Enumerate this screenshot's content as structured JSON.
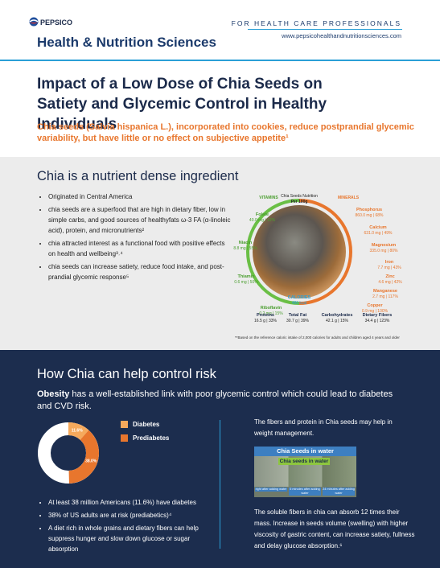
{
  "header": {
    "logo": "PEPSICO",
    "brand": "Health & Nutrition Sciences",
    "audience": "FOR HEALTH CARE PROFESSIONALS",
    "url": "www.pepsicohealthandnutritionsciences.com"
  },
  "hero": {
    "title": "Impact of a Low Dose of Chia Seeds on Satiety and Glycemic Control in Healthy Individuals",
    "subtitle": "Chia seeds (Salvia hispanica L.), incorporated into cookies, reduce postprandial glycemic variability, but have little or no effect on subjective appetite¹"
  },
  "nutrient": {
    "heading": "Chia is a nutrient dense ingredient",
    "bullets": [
      "Originated in Central America",
      "chia seeds are a superfood that are high in dietary fiber, low in simple carbs, and good sources of healthyfats ω-3 FA (α-linoleic acid), protein, and micronutrients²",
      "chia attracted interest as a functional food with positive effects on health and wellbeing³˒⁴",
      "chia seeds can increase satiety, reduce food intake, and post-prandial glycemic response⁵"
    ]
  },
  "infographic": {
    "vitamins_label": "VITAMINS",
    "minerals_label": "MINERALS",
    "title": "Chia Seeds Nutrition",
    "per": "Per 100g",
    "vitamins": [
      {
        "name": "Folate",
        "amount": "40.0 mg | 12%"
      },
      {
        "name": "Niacin",
        "amount": "8.8 mg | 55%"
      },
      {
        "name": "Thiamin",
        "amount": "0.6 mg | 50%"
      },
      {
        "name": "Riboflavin",
        "amount": "0.2 mg | 15%"
      }
    ],
    "minerals": [
      {
        "name": "Phosphorus",
        "amount": "860.0 mg | 68%"
      },
      {
        "name": "Calcium",
        "amount": "631.0 mg | 49%"
      },
      {
        "name": "Magnesium",
        "amount": "335.0 mg | 80%"
      },
      {
        "name": "Iron",
        "amount": "7.7 mg | 43%"
      },
      {
        "name": "Zinc",
        "amount": "4.6 mg | 42%"
      },
      {
        "name": "Manganese",
        "amount": "2.7 mg | 117%"
      },
      {
        "name": "Copper",
        "amount": "0.9 mg | 100%"
      }
    ],
    "calories": {
      "label": "CALORIES",
      "amount": "486 kcal"
    },
    "macros": [
      {
        "name": "Proteins",
        "amount": "16.5 g | 33%"
      },
      {
        "name": "Total Fat",
        "amount": "30.7 g | 39%"
      },
      {
        "name": "Carbohydrates",
        "amount": "42.1 g | 15%"
      },
      {
        "name": "Dietary Fibers",
        "amount": "34.4 g | 123%"
      }
    ],
    "footnote": "**Based on the reference caloric intake of 2,000 calories for adults and children aged 4 years and older"
  },
  "risk": {
    "heading": "How Chia can help control risk",
    "lead_term": "Obesity",
    "lead": "has a well-established link with poor glycemic control which could lead to diabetes and CVD risk.",
    "bullets": [
      "At least 38 million Americans (11.6%) have diabetes",
      "38% of US adults are at risk (prediabetics)⁴",
      "A diet rich in whole grains and dietary fibers can help suppress hunger and slow down glucose or sugar absorption"
    ],
    "right_intro": "The fibers and protein in Chia seeds may help in weight management.",
    "figure": {
      "title": "Chia Seeds in water",
      "label": "Chia seeds in water",
      "captions": [
        "right after adding water",
        "5 minutes after adding water",
        "24 minutes after adding water"
      ]
    },
    "right_text": "The soluble fibers in chia can absorb 12 times their mass. Increase in seeds volume (swelling) with higher viscosity of gastric content, can increase satiety, fullness and delay glucose absorption.⁶"
  },
  "chart_data": {
    "type": "donut",
    "categories": [
      "Diabetes",
      "Prediabetes"
    ],
    "values": [
      11.6,
      38.0
    ],
    "value_labels": [
      "11.6%",
      "38.0%"
    ],
    "colors": [
      "#f5a95c",
      "#e8762d"
    ]
  }
}
